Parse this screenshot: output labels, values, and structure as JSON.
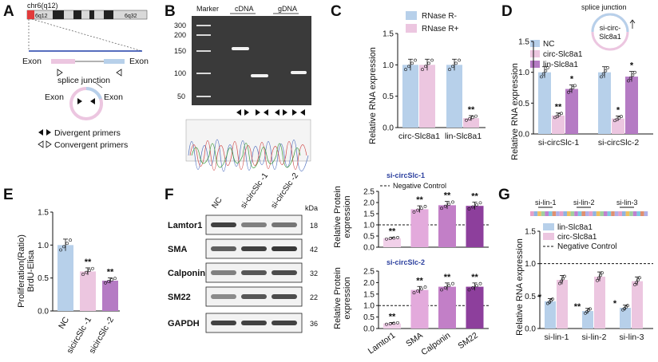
{
  "colors": {
    "blue": "#b7d0ea",
    "pink": "#ecc6e0",
    "purple": "#b57bc4",
    "p1": "#f1d0e9",
    "p2": "#e3aadc",
    "p3": "#c27fc7",
    "p4": "#8d3f9c",
    "gel": "#3a3a3a"
  },
  "panels": {
    "A": "A",
    "B": "B",
    "C": "C",
    "D": "D",
    "E": "E",
    "F": "F",
    "G": "G"
  },
  "panelA": {
    "chrom": "chr6(q12)",
    "band_left": "6q12",
    "band_right": "6q32",
    "exon1": "Exon",
    "exon2": "Exon",
    "junction": "splice junction",
    "circ_exon1": "Exon",
    "circ_exon2": "Exon",
    "legend_div": "Divergent primers",
    "legend_conv": "Convergent primers"
  },
  "panelB": {
    "marker": "Marker",
    "cdna": "cDNA",
    "gdna": "gDNA",
    "ladder": [
      "300",
      "200",
      "150",
      "100",
      "50"
    ]
  },
  "panelD_inset": {
    "label": "splice junction",
    "name_line1": "si-circ-",
    "name_line2": "Slc8a1"
  },
  "panelF": {
    "lanes": [
      "NC",
      "si-circSlc -1",
      "si-circSlc -2"
    ],
    "kda": "kDa",
    "proteins": [
      "Lamtor1",
      "SMA",
      "Calponin",
      "SM22",
      "GAPDH"
    ],
    "sizes": [
      "18",
      "42",
      "32",
      "22",
      "36"
    ]
  },
  "panelG_track": {
    "labels": [
      "si-lin-1",
      "si-lin-2",
      "si-lin-3"
    ]
  },
  "chart_data": [
    {
      "id": "C",
      "type": "bar",
      "categories": [
        "circ-Slc8a1",
        "lin-Slc8a1"
      ],
      "series": [
        {
          "name": "RNase R-",
          "values": [
            1.0,
            1.0
          ]
        },
        {
          "name": "RNase R+",
          "values": [
            1.0,
            0.15
          ]
        }
      ],
      "ylabel": "Relative RNA expression",
      "ylim": [
        0,
        1.5
      ],
      "yticks": [
        "0.0",
        "0.5",
        "1.0",
        "1.5"
      ],
      "annotations": [
        "**"
      ]
    },
    {
      "id": "D",
      "type": "bar",
      "categories": [
        "si-circSlc-1",
        "si-circSlc-2"
      ],
      "series": [
        {
          "name": "NC",
          "values": [
            1.0,
            1.0
          ]
        },
        {
          "name": "circ-Slc8a1",
          "values": [
            0.3,
            0.25
          ]
        },
        {
          "name": "lin-Slc8a1",
          "values": [
            0.73,
            0.93
          ]
        }
      ],
      "ylabel": "Relative RNA expression",
      "ylim": [
        0,
        1.5
      ],
      "yticks": [
        "0.0",
        "0.5",
        "1.0",
        "1.5"
      ],
      "annotations": [
        "**",
        "*",
        "*",
        "*"
      ]
    },
    {
      "id": "E",
      "type": "bar",
      "categories": [
        "NC",
        "sicircSlc -1",
        "sicircSlc -2"
      ],
      "values": [
        1.0,
        0.6,
        0.46
      ],
      "ylabel": "Proliferation(Ratio) BrdU-Elisa",
      "ylim": [
        0,
        1.5
      ],
      "yticks": [
        "0.0",
        "0.5",
        "1.0",
        "1.5"
      ],
      "annotations": [
        "**",
        "**"
      ]
    },
    {
      "id": "F-top",
      "type": "bar",
      "title": "si-circSlc-1",
      "categories": [
        "Lamtor1",
        "SMA",
        "Calponin",
        "SM22"
      ],
      "values": [
        0.4,
        1.7,
        1.88,
        1.85
      ],
      "ylabel": "Relative Protein expression",
      "ylim": [
        0,
        2.5
      ],
      "yticks": [
        "0.0",
        "0.5",
        "1.0",
        "1.5",
        "2.0",
        "2.5"
      ],
      "reference_line": {
        "label": "Negative Control",
        "y": 1.0
      },
      "annotations": [
        "**",
        "**",
        "**",
        "**"
      ]
    },
    {
      "id": "F-bottom",
      "type": "bar",
      "title": "si-circSlc-2",
      "categories": [
        "Lamtor1",
        "SMA",
        "Calponin",
        "SM22"
      ],
      "values": [
        0.22,
        1.68,
        1.82,
        1.82
      ],
      "ylabel": "Relative Protein expression",
      "ylim": [
        0,
        2.5
      ],
      "yticks": [
        "0.0",
        "0.5",
        "1.0",
        "1.5",
        "2.0",
        "2.5"
      ],
      "annotations": [
        "**",
        "**",
        "**",
        "**"
      ]
    },
    {
      "id": "G",
      "type": "bar",
      "categories": [
        "si-lin-1",
        "si-lin-2",
        "si-lin-3"
      ],
      "series": [
        {
          "name": "lin-Slc8a1",
          "values": [
            0.42,
            0.27,
            0.32
          ]
        },
        {
          "name": "circ-Slc8a1",
          "values": [
            0.75,
            0.8,
            0.73
          ]
        }
      ],
      "ylabel": "Relative RNA expression",
      "ylim": [
        0,
        1.5
      ],
      "yticks": [
        "0.0",
        "0.5",
        "1.0",
        "1.5"
      ],
      "reference_line": {
        "label": "Negative Control",
        "y": 1.0
      },
      "annotations": [
        "*",
        "**",
        "*"
      ]
    }
  ]
}
